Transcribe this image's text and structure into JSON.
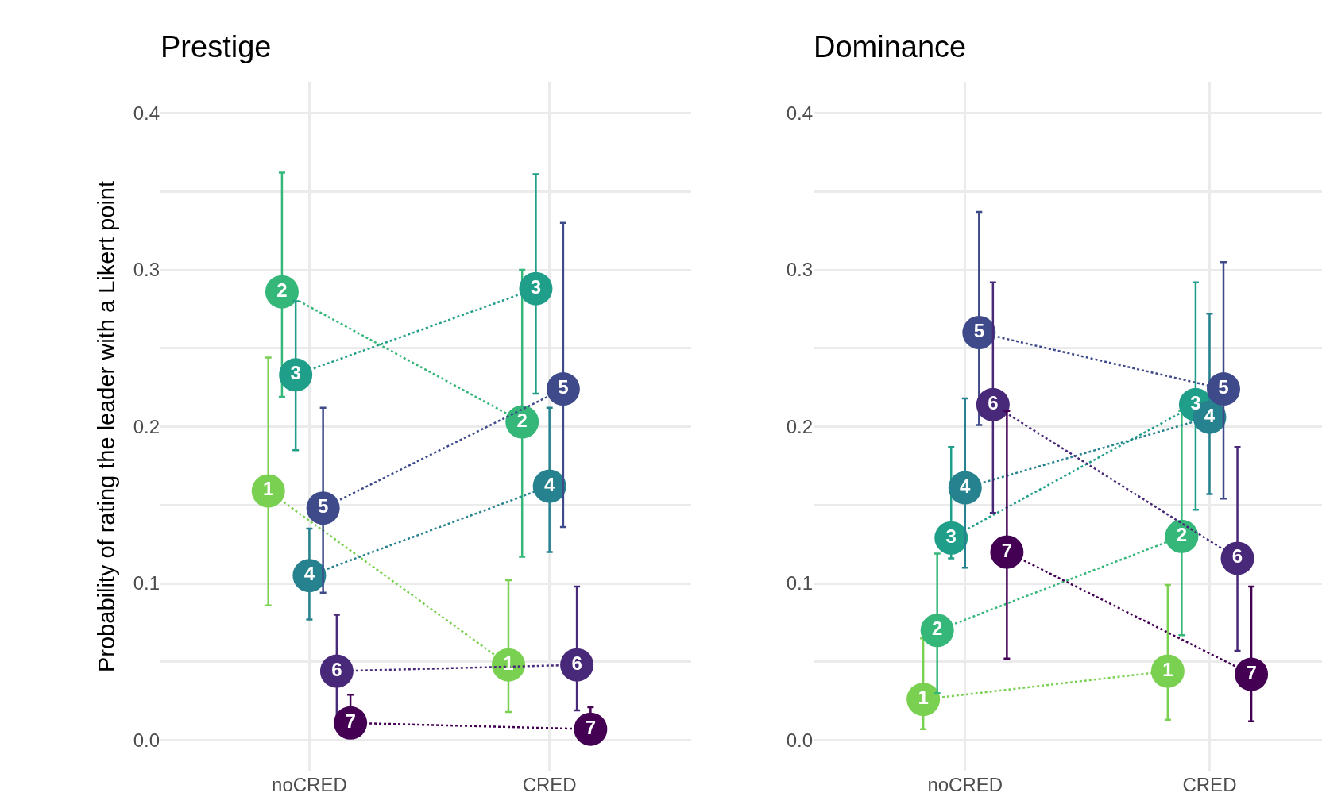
{
  "chart_data": [
    {
      "type": "line",
      "title": "Prestige",
      "ylabel": "Probability of rating the leader with a Likert point",
      "categories": [
        "noCRED",
        "CRED"
      ],
      "ylim": [
        -0.02,
        0.42
      ],
      "yticks": [
        {
          "value": 0,
          "label": "0.0"
        },
        {
          "value": 0.05,
          "label": null
        },
        {
          "value": 0.1,
          "label": "0.1"
        },
        {
          "value": 0.15,
          "label": null
        },
        {
          "value": 0.2,
          "label": "0.2"
        },
        {
          "value": 0.25,
          "label": null
        },
        {
          "value": 0.3,
          "label": "0.3"
        },
        {
          "value": 0.35,
          "label": null
        },
        {
          "value": 0.4,
          "label": "0.4"
        }
      ],
      "grid": true,
      "marker": "circle",
      "line_style": "dotted",
      "series": [
        {
          "name": "1",
          "color": "#7ad151",
          "values": [
            0.159,
            0.048
          ],
          "errors": [
            [
              0.086,
              0.244
            ],
            [
              0.018,
              0.102
            ]
          ]
        },
        {
          "name": "2",
          "color": "#35b779",
          "values": [
            0.286,
            0.203
          ],
          "errors": [
            [
              0.219,
              0.362
            ],
            [
              0.117,
              0.3
            ]
          ]
        },
        {
          "name": "3",
          "color": "#1f9e89",
          "values": [
            0.233,
            0.288
          ],
          "errors": [
            [
              0.185,
              0.28
            ],
            [
              0.221,
              0.361
            ]
          ]
        },
        {
          "name": "4",
          "color": "#26828e",
          "values": [
            0.105,
            0.162
          ],
          "errors": [
            [
              0.077,
              0.135
            ],
            [
              0.12,
              0.212
            ]
          ]
        },
        {
          "name": "5",
          "color": "#3e4a89",
          "values": [
            0.148,
            0.224
          ],
          "errors": [
            [
              0.094,
              0.212
            ],
            [
              0.136,
              0.33
            ]
          ]
        },
        {
          "name": "6",
          "color": "#482878",
          "values": [
            0.044,
            0.048
          ],
          "errors": [
            [
              0.012,
              0.08
            ],
            [
              0.019,
              0.098
            ]
          ]
        },
        {
          "name": "7",
          "color": "#440154",
          "values": [
            0.011,
            0.007
          ],
          "errors": [
            [
              0.011,
              0.029
            ],
            [
              0.007,
              0.021
            ]
          ]
        }
      ]
    },
    {
      "type": "line",
      "title": "Dominance",
      "categories": [
        "noCRED",
        "CRED"
      ],
      "ylim": [
        -0.02,
        0.42
      ],
      "yticks": [
        {
          "value": 0,
          "label": "0.0"
        },
        {
          "value": 0.05,
          "label": null
        },
        {
          "value": 0.1,
          "label": "0.1"
        },
        {
          "value": 0.15,
          "label": null
        },
        {
          "value": 0.2,
          "label": "0.2"
        },
        {
          "value": 0.25,
          "label": null
        },
        {
          "value": 0.3,
          "label": "0.3"
        },
        {
          "value": 0.35,
          "label": null
        },
        {
          "value": 0.4,
          "label": "0.4"
        }
      ],
      "grid": true,
      "marker": "circle",
      "line_style": "dotted",
      "series": [
        {
          "name": "1",
          "color": "#7ad151",
          "values": [
            0.026,
            0.044
          ],
          "errors": [
            [
              0.007,
              0.065
            ],
            [
              0.013,
              0.099
            ]
          ]
        },
        {
          "name": "2",
          "color": "#35b779",
          "values": [
            0.07,
            0.13
          ],
          "errors": [
            [
              0.03,
              0.119
            ],
            [
              0.067,
              0.21
            ]
          ]
        },
        {
          "name": "3",
          "color": "#1f9e89",
          "values": [
            0.129,
            0.214
          ],
          "errors": [
            [
              0.116,
              0.187
            ],
            [
              0.147,
              0.292
            ]
          ]
        },
        {
          "name": "4",
          "color": "#26828e",
          "values": [
            0.161,
            0.206
          ],
          "errors": [
            [
              0.11,
              0.218
            ],
            [
              0.157,
              0.272
            ]
          ]
        },
        {
          "name": "5",
          "color": "#3e4a89",
          "values": [
            0.26,
            0.224
          ],
          "errors": [
            [
              0.201,
              0.337
            ],
            [
              0.154,
              0.305
            ]
          ]
        },
        {
          "name": "6",
          "color": "#482878",
          "values": [
            0.214,
            0.116
          ],
          "errors": [
            [
              0.145,
              0.292
            ],
            [
              0.057,
              0.187
            ]
          ]
        },
        {
          "name": "7",
          "color": "#440154",
          "values": [
            0.12,
            0.042
          ],
          "errors": [
            [
              0.052,
              0.21
            ],
            [
              0.012,
              0.098
            ]
          ]
        }
      ]
    }
  ]
}
